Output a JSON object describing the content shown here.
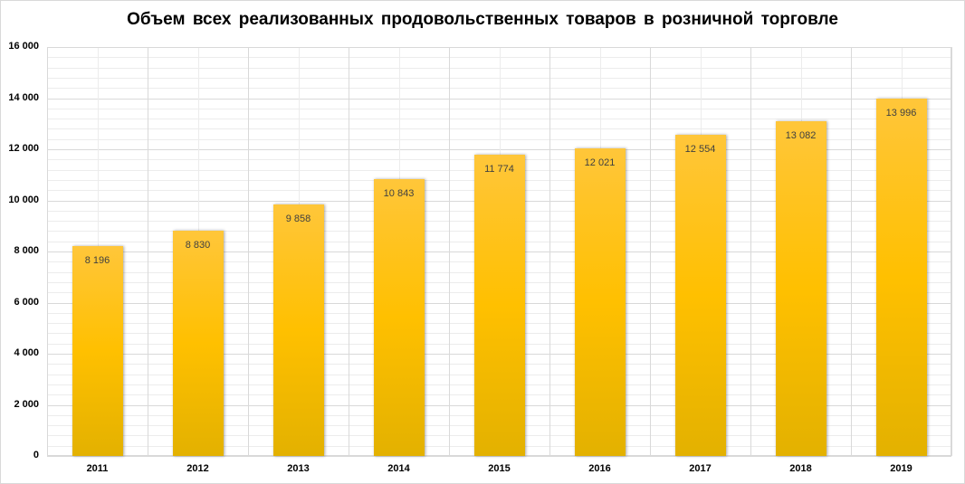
{
  "chart_data": {
    "type": "bar",
    "title": "Объем всех реализованных  продовольственных  товаров  в розничной  торговле",
    "xlabel": "",
    "ylabel": "",
    "categories": [
      "2011",
      "2012",
      "2013",
      "2014",
      "2015",
      "2016",
      "2017",
      "2018",
      "2019"
    ],
    "values": [
      8196,
      8830,
      9858,
      10843,
      11774,
      12021,
      12554,
      13082,
      13996
    ],
    "value_labels": [
      "8 196",
      "8 830",
      "9 858",
      "10 843",
      "11 774",
      "12 021",
      "12 554",
      "13 082",
      "13 996"
    ],
    "ylim": [
      0,
      16000
    ],
    "yticks": [
      0,
      2000,
      4000,
      6000,
      8000,
      10000,
      12000,
      14000,
      16000
    ],
    "ytick_labels": [
      "0",
      "2 000",
      "4 000",
      "6 000",
      "8 000",
      "10 000",
      "12 000",
      "14 000",
      "16 000"
    ],
    "grid": {
      "major_y": true,
      "minor_y": true,
      "vertical": true
    },
    "legend": null,
    "colors": {
      "bar_top": "#ffc63a",
      "bar_mid": "#ffc000",
      "bar_bottom": "#e3b100",
      "grid_major": "#d9d9d9",
      "grid_minor": "#ececec"
    }
  }
}
